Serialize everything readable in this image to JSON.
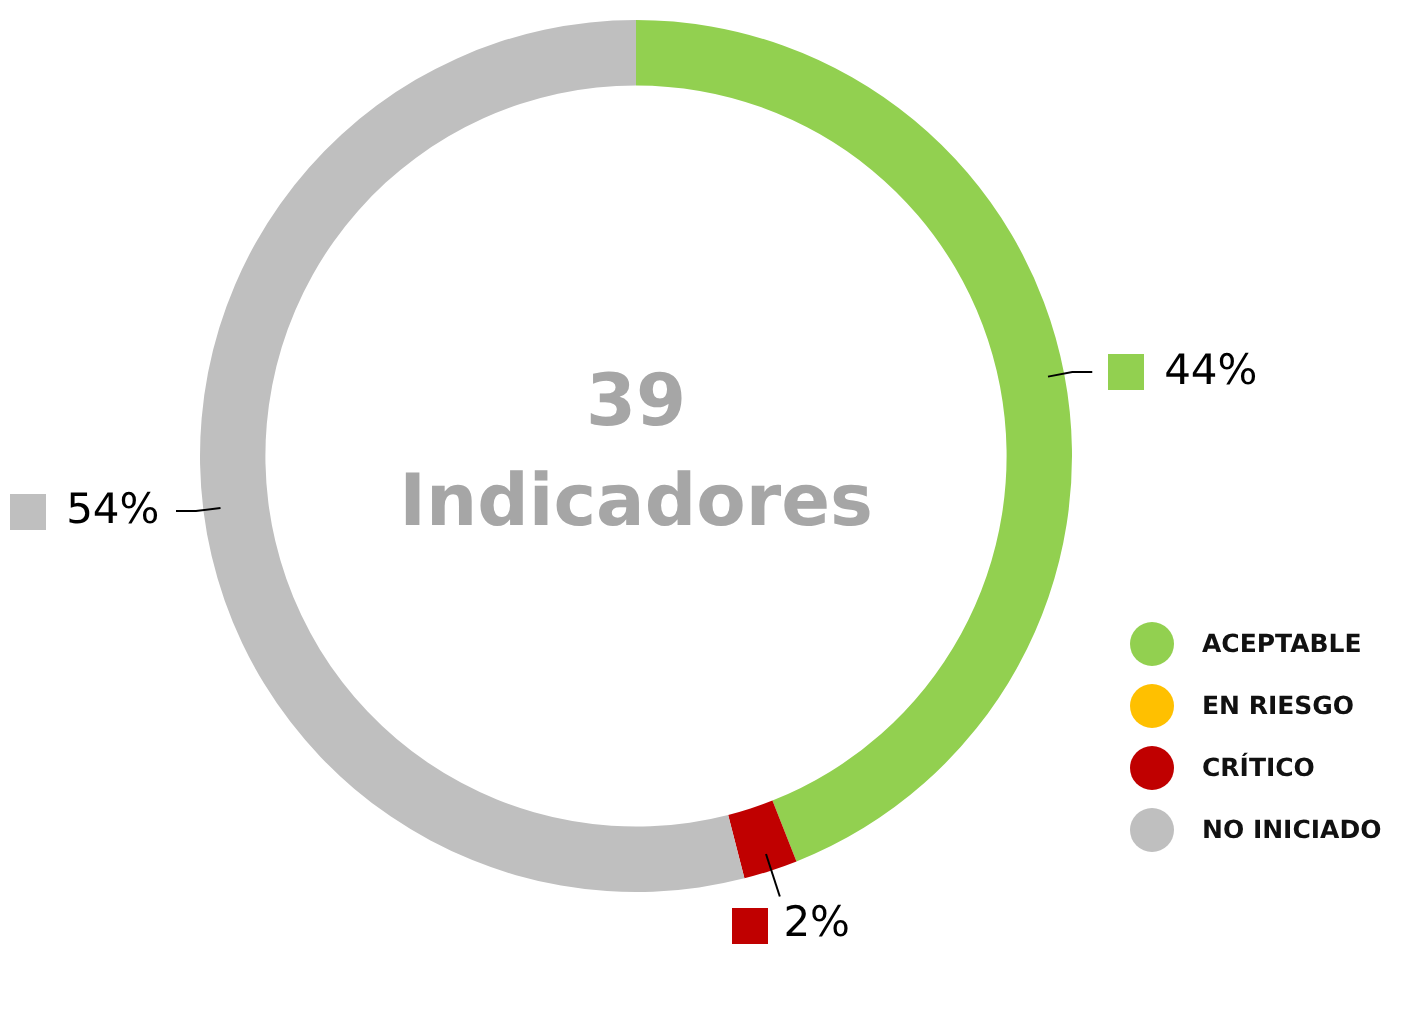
{
  "chart_data": {
    "type": "donut",
    "categories": [
      "ACEPTABLE",
      "EN RIESGO",
      "CRÍTICO",
      "NO INICIADO"
    ],
    "values": [
      44,
      0,
      2,
      54
    ],
    "colors": [
      "#92d050",
      "#ffc000",
      "#c00000",
      "#bfbfbf"
    ],
    "value_labels": [
      "44%",
      null,
      "2%",
      "54%"
    ],
    "annotations": [
      "39",
      "Indicadores"
    ],
    "legend": "bottom right"
  }
}
